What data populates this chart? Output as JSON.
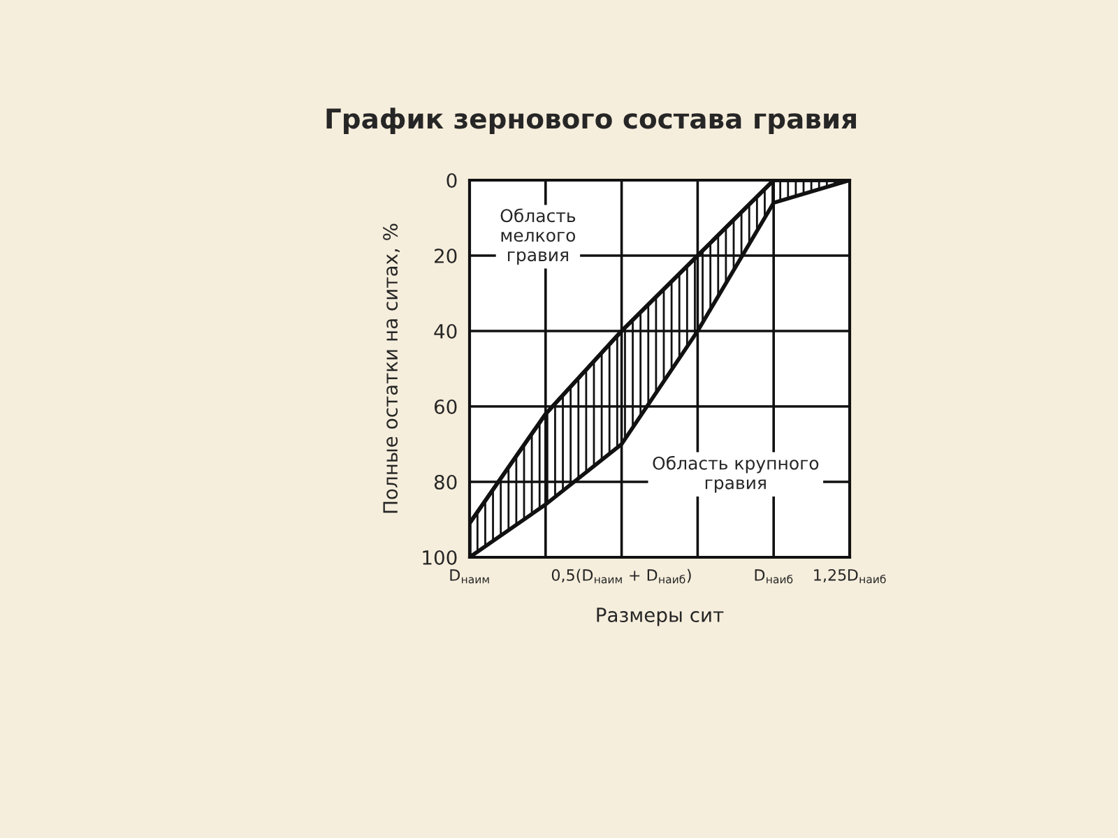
{
  "chart_data": {
    "type": "line",
    "title": "График зернового состава гравия",
    "xlabel": "Размеры сит",
    "ylabel": "Полные остатки на ситах, %",
    "categories": [
      "D$_{наим}$",
      null,
      "0,5(D$_{наим}$ + D$_{наиб}$)",
      null,
      "D$_{наиб}$",
      "1,25D$_{наиб}$"
    ],
    "series": [
      {
        "color": "#111111",
        "values": [
          91,
          62,
          40,
          20,
          0,
          0
        ],
        "lower": [
          91,
          62,
          40,
          20,
          0,
          0
        ],
        "upper": [
          100,
          86,
          70,
          40,
          6,
          0
        ]
      }
    ],
    "ylim": [
      100,
      0
    ],
    "yticks": [
      0,
      20,
      40,
      60,
      80,
      100
    ],
    "grid": true,
    "marker": "none",
    "line_style": "solid",
    "annotations": [
      "Область\nмелкого\nгравия",
      "Область крупного\nгравия"
    ]
  }
}
